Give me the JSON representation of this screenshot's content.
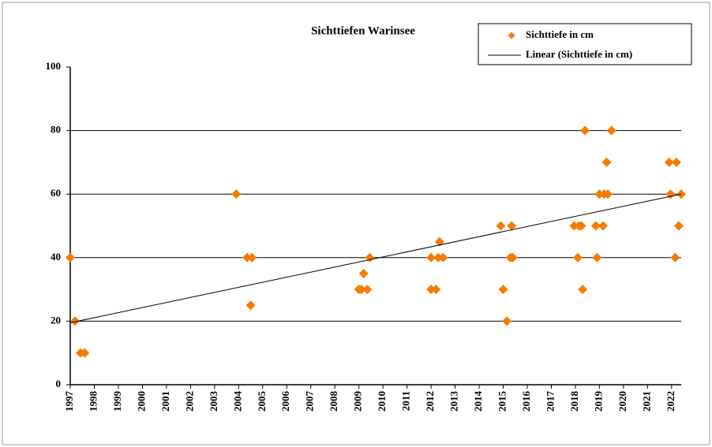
{
  "chart_data": {
    "type": "scatter",
    "title": "Sichttiefen Warinsee",
    "series": [
      {
        "name": "Sichttiefe in cm",
        "color": "#f57c00",
        "x": [
          1997.0,
          1997.2,
          1997.43,
          1997.6,
          2003.9,
          2004.35,
          2004.5,
          2004.55,
          2009.0,
          2009.1,
          2009.2,
          2009.35,
          2009.45,
          2012.0,
          2012.0,
          2012.2,
          2012.3,
          2012.35,
          2012.5,
          2014.9,
          2015.0,
          2015.15,
          2015.3,
          2015.35,
          2015.4,
          2017.95,
          2018.1,
          2018.15,
          2018.25,
          2018.3,
          2018.4,
          2018.85,
          2018.9,
          2019.0,
          2019.15,
          2019.2,
          2019.3,
          2019.35,
          2019.5,
          2021.9,
          2021.95,
          2022.15,
          2022.2,
          2022.3,
          2022.4
        ],
        "values": [
          40,
          20,
          10,
          10,
          60,
          40,
          25,
          40,
          30,
          30,
          35,
          30,
          40,
          40,
          30,
          30,
          40,
          45,
          40,
          50,
          30,
          20,
          40,
          50,
          40,
          50,
          40,
          50,
          50,
          30,
          80,
          50,
          40,
          60,
          50,
          60,
          70,
          60,
          80,
          70,
          60,
          40,
          70,
          50,
          60
        ]
      },
      {
        "name": "Linear (Sichttiefe in cm)",
        "color": "#000000",
        "line": true,
        "x": [
          1997.0,
          2022.4
        ],
        "values": [
          19.5,
          60
        ]
      }
    ],
    "xlim": [
      1997,
      2022.4
    ],
    "xticks": [
      1997,
      1998,
      1999,
      2000,
      2001,
      2002,
      2003,
      2004,
      2005,
      2006,
      2007,
      2008,
      2009,
      2010,
      2011,
      2012,
      2013,
      2014,
      2015,
      2016,
      2017,
      2018,
      2019,
      2020,
      2021,
      2022
    ],
    "ylim": [
      0,
      100
    ],
    "yticks": [
      0,
      20,
      40,
      60,
      80,
      100
    ],
    "grid": true,
    "legend": "top-right"
  }
}
